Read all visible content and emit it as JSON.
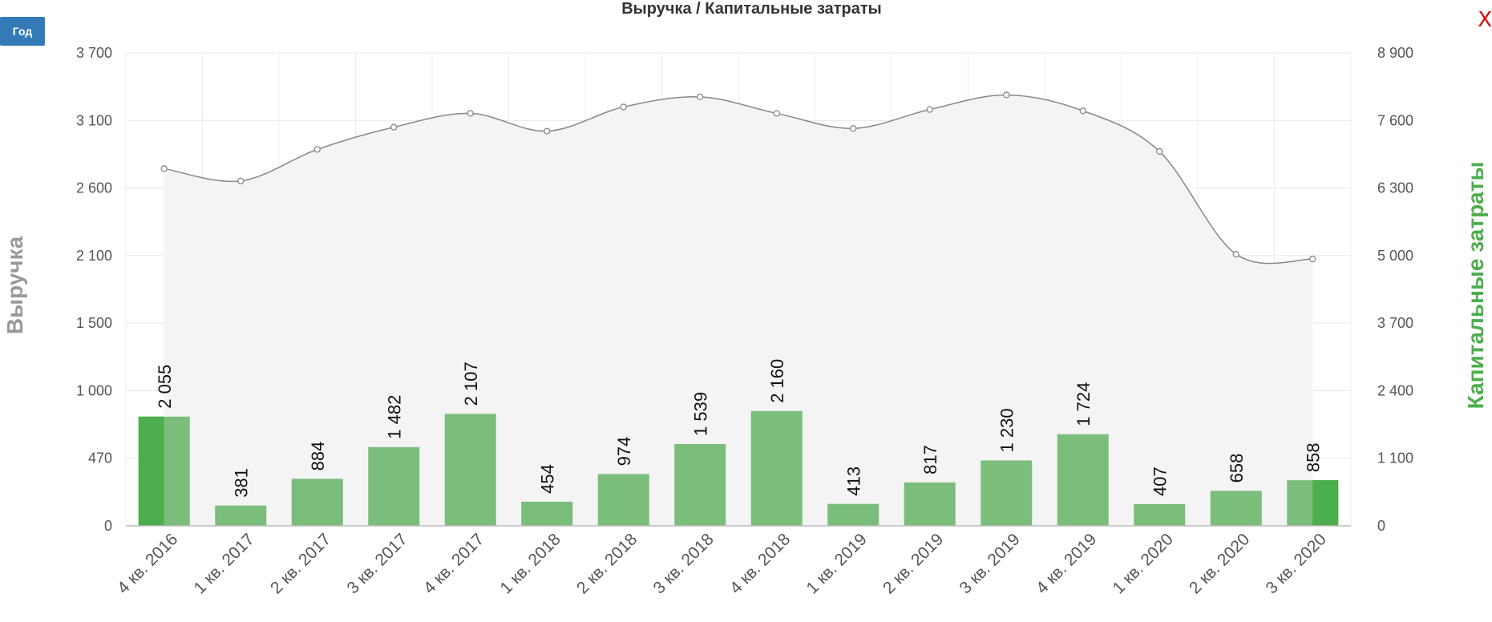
{
  "controls": {
    "period_label": "Год",
    "close_label": "X"
  },
  "chart_data": {
    "type": "bar",
    "title": "Выручка / Капитальные затраты",
    "categories": [
      "4 кв. 2016",
      "1 кв. 2017",
      "2 кв. 2017",
      "3 кв. 2017",
      "4 кв. 2017",
      "1 кв. 2018",
      "2 кв. 2018",
      "3 кв. 2018",
      "4 кв. 2018",
      "1 кв. 2019",
      "2 кв. 2019",
      "3 кв. 2019",
      "4 кв. 2019",
      "1 кв. 2020",
      "2 кв. 2020",
      "3 кв. 2020"
    ],
    "ylabel_left": "Выручка",
    "ylabel_right": "Капитальные затраты",
    "ylim_left": [
      0,
      3700
    ],
    "ylim_right": [
      0,
      8900
    ],
    "yticks_left": [
      "0",
      "470",
      "1 000",
      "1 500",
      "2 100",
      "2 600",
      "3 100",
      "3 700"
    ],
    "yticks_right": [
      "0",
      "1 100",
      "2 400",
      "3 700",
      "5 000",
      "6 300",
      "7 600",
      "8 900"
    ],
    "grid": true,
    "series": [
      {
        "name": "Выручка",
        "type": "area",
        "axis": "left",
        "values": [
          2795,
          2698,
          2945,
          3119,
          3227,
          3088,
          3277,
          3356,
          3227,
          3109,
          3257,
          3371,
          3247,
          2929,
          2125,
          2087
        ]
      },
      {
        "name": "Капитальные затраты",
        "type": "bar",
        "axis": "right",
        "values": [
          2055,
          381,
          884,
          1482,
          2107,
          454,
          974,
          1539,
          2160,
          413,
          817,
          1230,
          1724,
          407,
          658,
          858
        ],
        "labels": [
          "2 055",
          "381",
          "884",
          "1 482",
          "2 107",
          "454",
          "974",
          "1 539",
          "2 160",
          "413",
          "817",
          "1 230",
          "1 724",
          "407",
          "658",
          "858"
        ]
      }
    ],
    "colors": {
      "bar": "#7bbd7b",
      "bar_highlight": "#4cae4c",
      "area_fill": "#f4f4f4",
      "area_line": "#888888",
      "right_axis_label": "#4cae4c",
      "left_axis_label": "#999999"
    }
  }
}
